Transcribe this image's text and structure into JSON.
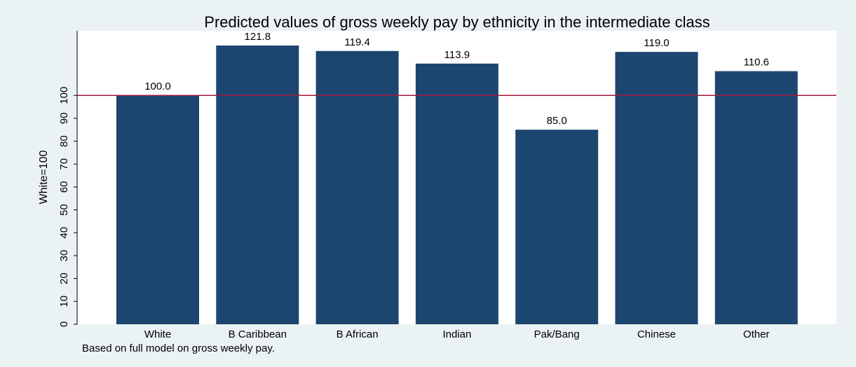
{
  "chart_data": {
    "type": "bar",
    "title": "Predicted values of gross weekly pay by ethnicity in the intermediate class",
    "xlabel": "",
    "ylabel": "White=100",
    "note": "Based on full model on gross weekly pay.",
    "categories": [
      "White",
      "B Caribbean",
      "B African",
      "Indian",
      "Pak/Bang",
      "Chinese",
      "Other"
    ],
    "values": [
      100.0,
      121.8,
      119.4,
      113.9,
      85.0,
      119.0,
      110.6
    ],
    "value_labels": [
      "100.0",
      "121.8",
      "119.4",
      "113.9",
      "85.0",
      "119.0",
      "110.6"
    ],
    "yticks": [
      0,
      10,
      20,
      30,
      40,
      50,
      60,
      70,
      80,
      90,
      100
    ],
    "ylim": [
      0,
      121.8
    ],
    "reference_line": 100,
    "grid": false,
    "legend": "none",
    "colors": {
      "bar": "#1c4670",
      "reference_line": "#a01a3c",
      "plot_background": "#ffffff",
      "page_background": "#eaf2f3",
      "axis": "#000000"
    }
  }
}
